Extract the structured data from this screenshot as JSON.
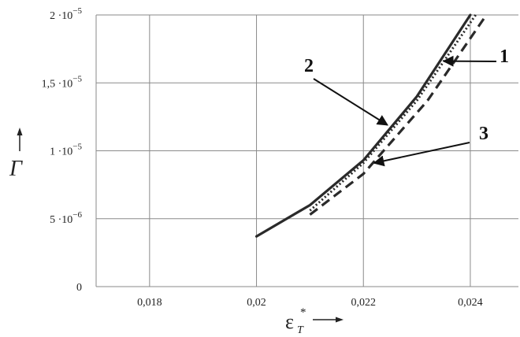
{
  "chart_data": {
    "type": "line",
    "xlim": [
      0.017,
      0.0249
    ],
    "ylim": [
      0,
      2e-05
    ],
    "grid": true,
    "x_ticks": [
      {
        "value": 0.018,
        "label": "0,018"
      },
      {
        "value": 0.02,
        "label": "0,02"
      },
      {
        "value": 0.022,
        "label": "0,022"
      },
      {
        "value": 0.024,
        "label": "0,024"
      }
    ],
    "y_ticks": [
      {
        "value": 0,
        "mant": "0",
        "exp": ""
      },
      {
        "value": 5e-06,
        "mant": "5 ·10",
        "exp": "−6"
      },
      {
        "value": 1e-05,
        "mant": "1 ·10",
        "exp": "−5"
      },
      {
        "value": 1.5e-05,
        "mant": "1,5 ·10",
        "exp": "−5"
      },
      {
        "value": 2e-05,
        "mant": "2 ·10",
        "exp": "−5"
      }
    ],
    "xlabel": {
      "symbol": "ε",
      "sub": "T",
      "sup": "*"
    },
    "ylabel": {
      "symbol": "Γ"
    },
    "series": [
      {
        "id": "2",
        "style": "solid",
        "x": [
          0.02,
          0.021,
          0.022,
          0.023,
          0.024
        ],
        "y": [
          3.7e-06,
          6e-06,
          9.3e-06,
          1.4e-05,
          2e-05
        ]
      },
      {
        "id": "1",
        "style": "dotted",
        "x": [
          0.021,
          0.022,
          0.023,
          0.0241
        ],
        "y": [
          5.6e-06,
          9.1e-06,
          1.37e-05,
          2e-05
        ]
      },
      {
        "id": "3",
        "style": "dashed",
        "x": [
          0.021,
          0.022,
          0.0232,
          0.0243
        ],
        "y": [
          5.3e-06,
          8.3e-06,
          1.37e-05,
          2e-05
        ]
      }
    ],
    "callouts": [
      {
        "label": "1",
        "target": {
          "x": 0.0235,
          "y": 1.66e-05
        }
      },
      {
        "label": "2",
        "target": {
          "x": 0.02245,
          "y": 1.19e-05
        }
      },
      {
        "label": "3",
        "target": {
          "x": 0.0222,
          "y": 9.1e-06
        }
      }
    ]
  }
}
